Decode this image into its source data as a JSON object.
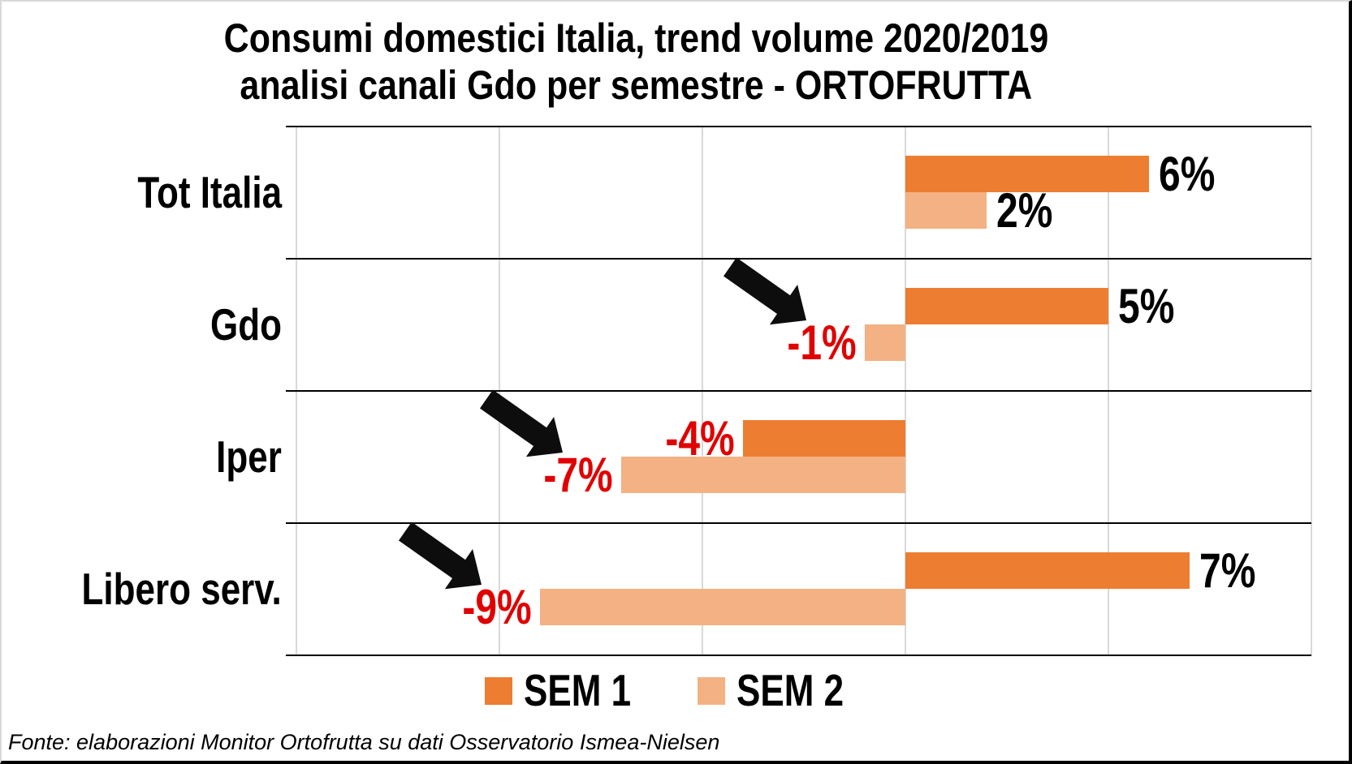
{
  "page": {
    "title_line1": "Consumi domestici Italia, trend volume 2020/2019",
    "title_line2": "analisi canali Gdo per semestre - ORTOFRUTTA"
  },
  "chart_data": {
    "type": "bar",
    "orientation": "horizontal",
    "title": "Consumi domestici Italia, trend volume 2020/2019 analisi canali Gdo per semestre - ORTOFRUTTA",
    "categories": [
      "Tot Italia",
      "Gdo",
      "Iper",
      "Libero serv."
    ],
    "series": [
      {
        "name": "SEM 1",
        "color": "#ED7D31",
        "values": [
          6,
          5,
          -4,
          7
        ],
        "labels": [
          "6%",
          "5%",
          "-4%",
          "7%"
        ]
      },
      {
        "name": "SEM 2",
        "color": "#F4B183",
        "values": [
          2,
          -1,
          -7,
          -9
        ],
        "labels": [
          "2%",
          "-1%",
          "-7%",
          "-9%"
        ]
      }
    ],
    "xlim": [
      -15,
      10
    ],
    "gridline_step_pct": 5,
    "grid_on": true,
    "grid_color": "#d9d9d9",
    "row_separator_color": "#000000",
    "positive_label_color": "#000000",
    "negative_label_color": "#e00000",
    "legend_position": "bottom-center",
    "annotations": [
      {
        "type": "arrow-down-right",
        "target_category": "Gdo",
        "target_series": "SEM 2"
      },
      {
        "type": "arrow-down-right",
        "target_category": "Iper",
        "target_series": "SEM 2"
      },
      {
        "type": "arrow-down-right",
        "target_category": "Libero serv.",
        "target_series": "SEM 2"
      }
    ]
  },
  "footer": {
    "source": "Fonte: elaborazioni Monitor Ortofrutta su dati Osservatorio Ismea-Nielsen"
  }
}
